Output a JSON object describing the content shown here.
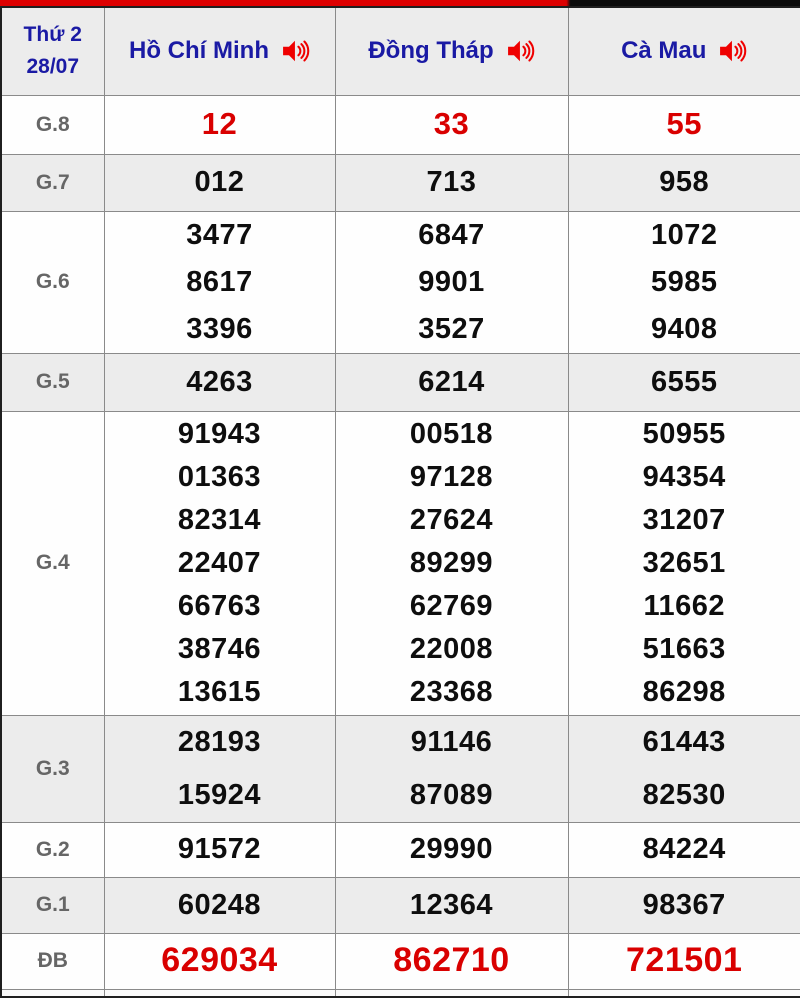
{
  "colors": {
    "accent_red": "#dd0000",
    "highlight_number_red": "#d90000",
    "header_navy": "#1a1aa4",
    "prize_label_gray": "#666666",
    "number_black": "#0e0e0e",
    "stripe_gray": "#ececec",
    "topbar_black": "#0b0b0b",
    "speaker_icon_red": "#ef0000"
  },
  "header": {
    "date_line1": "Thứ 2",
    "date_line2": "28/07",
    "provinces": [
      {
        "name": "Hồ Chí Minh",
        "icon": "speaker-icon"
      },
      {
        "name": "Đồng Tháp",
        "icon": "speaker-icon"
      },
      {
        "name": "Cà Mau",
        "icon": "speaker-icon"
      }
    ]
  },
  "prizes": [
    {
      "key": "g8",
      "label": "G.8",
      "highlight": true,
      "cols": [
        [
          "12"
        ],
        [
          "33"
        ],
        [
          "55"
        ]
      ]
    },
    {
      "key": "g7",
      "label": "G.7",
      "highlight": false,
      "cols": [
        [
          "012"
        ],
        [
          "713"
        ],
        [
          "958"
        ]
      ]
    },
    {
      "key": "g6",
      "label": "G.6",
      "highlight": false,
      "cols": [
        [
          "3477",
          "8617",
          "3396"
        ],
        [
          "6847",
          "9901",
          "3527"
        ],
        [
          "1072",
          "5985",
          "9408"
        ]
      ]
    },
    {
      "key": "g5",
      "label": "G.5",
      "highlight": false,
      "cols": [
        [
          "4263"
        ],
        [
          "6214"
        ],
        [
          "6555"
        ]
      ]
    },
    {
      "key": "g4",
      "label": "G.4",
      "highlight": false,
      "cols": [
        [
          "91943",
          "01363",
          "82314",
          "22407",
          "66763",
          "38746",
          "13615"
        ],
        [
          "00518",
          "97128",
          "27624",
          "89299",
          "62769",
          "22008",
          "23368"
        ],
        [
          "50955",
          "94354",
          "31207",
          "32651",
          "11662",
          "51663",
          "86298"
        ]
      ]
    },
    {
      "key": "g3",
      "label": "G.3",
      "highlight": false,
      "cols": [
        [
          "28193",
          "15924"
        ],
        [
          "91146",
          "87089"
        ],
        [
          "61443",
          "82530"
        ]
      ]
    },
    {
      "key": "g2",
      "label": "G.2",
      "highlight": false,
      "cols": [
        [
          "91572"
        ],
        [
          "29990"
        ],
        [
          "84224"
        ]
      ]
    },
    {
      "key": "g1",
      "label": "G.1",
      "highlight": false,
      "cols": [
        [
          "60248"
        ],
        [
          "12364"
        ],
        [
          "98367"
        ]
      ]
    },
    {
      "key": "db",
      "label": "ĐB",
      "highlight": true,
      "cols": [
        [
          "629034"
        ],
        [
          "862710"
        ],
        [
          "721501"
        ]
      ]
    }
  ]
}
